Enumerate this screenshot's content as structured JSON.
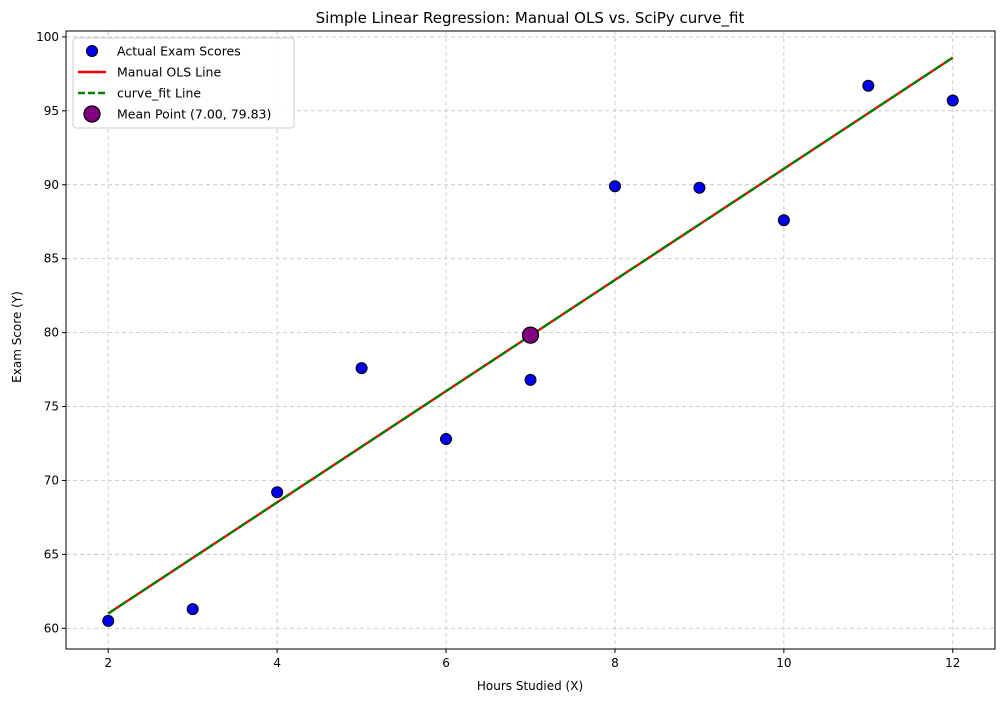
{
  "chart_data": {
    "type": "scatter",
    "title": "Simple Linear Regression: Manual OLS vs. SciPy curve_fit",
    "xlabel": "Hours Studied (X)",
    "ylabel": "Exam Score (Y)",
    "xlim": [
      1.5,
      12.5
    ],
    "ylim": [
      58.6,
      100.4
    ],
    "xticks": [
      2,
      4,
      6,
      8,
      10,
      12
    ],
    "yticks": [
      60,
      65,
      70,
      75,
      80,
      85,
      90,
      95,
      100
    ],
    "grid": true,
    "legend_position": "top-left",
    "series": [
      {
        "name": "Actual Exam Scores",
        "kind": "scatter",
        "color": "#0000ee",
        "x": [
          2,
          3,
          4,
          5,
          6,
          7,
          8,
          9,
          10,
          11,
          12
        ],
        "y": [
          60.5,
          61.3,
          69.2,
          77.6,
          72.8,
          76.8,
          89.9,
          89.8,
          87.6,
          96.7,
          95.7
        ]
      },
      {
        "name": "Manual OLS Line",
        "kind": "line",
        "color": "#ff0000",
        "style": "solid",
        "x": [
          2,
          12
        ],
        "y": [
          61.0,
          98.6
        ]
      },
      {
        "name": "curve_fit Line",
        "kind": "line",
        "color": "#008000",
        "style": "dashed",
        "x": [
          2,
          12
        ],
        "y": [
          61.0,
          98.6
        ]
      },
      {
        "name": "Mean Point (7.00, 79.83)",
        "kind": "point",
        "color": "#800080",
        "x": [
          7.0
        ],
        "y": [
          79.83
        ]
      }
    ]
  }
}
